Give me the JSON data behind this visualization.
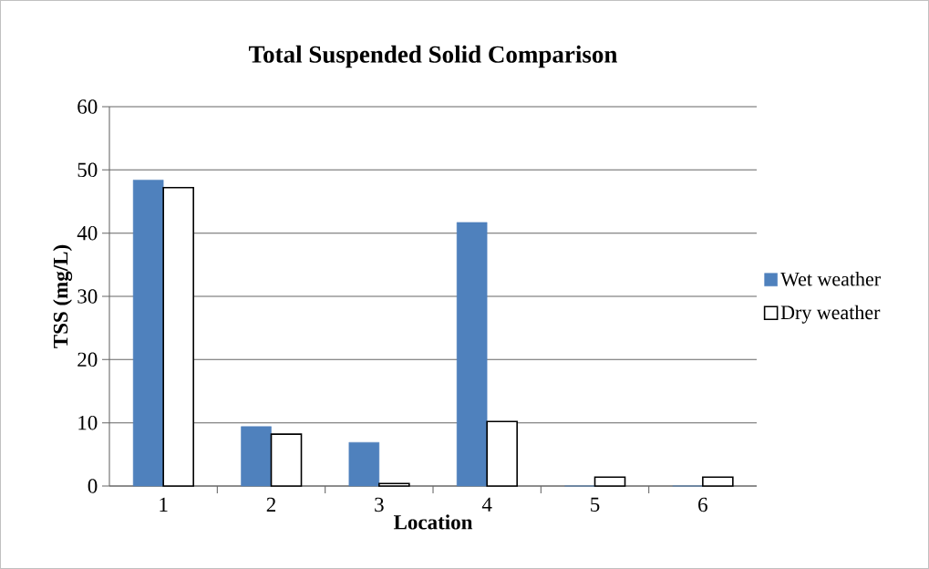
{
  "chart_data": {
    "type": "bar",
    "title": "Total Suspended Solid Comparison",
    "xlabel": "Location",
    "ylabel": "TSS (mg/L)",
    "categories": [
      "1",
      "2",
      "3",
      "4",
      "5",
      "6"
    ],
    "series": [
      {
        "name": "Wet weather",
        "color": "#4f81bd",
        "values": [
          48.4,
          9.4,
          6.9,
          41.7,
          0,
          0
        ]
      },
      {
        "name": "Dry weather",
        "color": "#ffffff",
        "values": [
          47.2,
          8.2,
          0.4,
          10.2,
          1.4,
          1.4
        ]
      }
    ],
    "ylim": [
      0,
      60
    ],
    "yticks": [
      0,
      10,
      20,
      30,
      40,
      50,
      60
    ],
    "grid": "y",
    "legend": "right"
  }
}
